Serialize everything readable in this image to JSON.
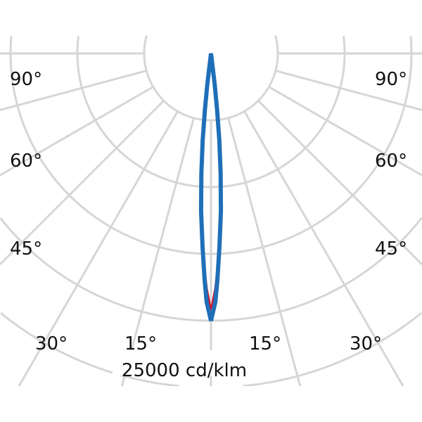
{
  "chart_data": {
    "type": "polar-line",
    "unit_label": "25000 cd/klm",
    "scale_max": 25000,
    "rings": [
      5000,
      10000,
      15000,
      20000,
      25000
    ],
    "spoke_angles_deg": [
      0,
      15,
      30,
      45,
      60,
      75,
      90
    ],
    "angle_labels": {
      "left": [
        "90°",
        "60°",
        "45°",
        "30°",
        "15°"
      ],
      "right": [
        "90°",
        "60°",
        "45°",
        "30°",
        "15°"
      ]
    },
    "grid": true,
    "series": [
      {
        "color": "#1f6fb8",
        "angles_deg": [
          0,
          1,
          1.6,
          2.5,
          3.6,
          4.6,
          5.5,
          6.2,
          6.8,
          7.2
        ],
        "values": [
          20000,
          18600,
          17000,
          14500,
          11800,
          9000,
          6500,
          4200,
          2300,
          0
        ]
      },
      {
        "color": "#d0102a",
        "angles_deg": [
          0,
          1,
          1.6,
          2.5,
          3.6,
          4.6,
          5.5,
          6.2,
          6.8,
          7.2
        ],
        "values": [
          19200,
          17600,
          16300,
          14000,
          11500,
          8800,
          6300,
          4000,
          2200,
          0
        ]
      }
    ]
  }
}
